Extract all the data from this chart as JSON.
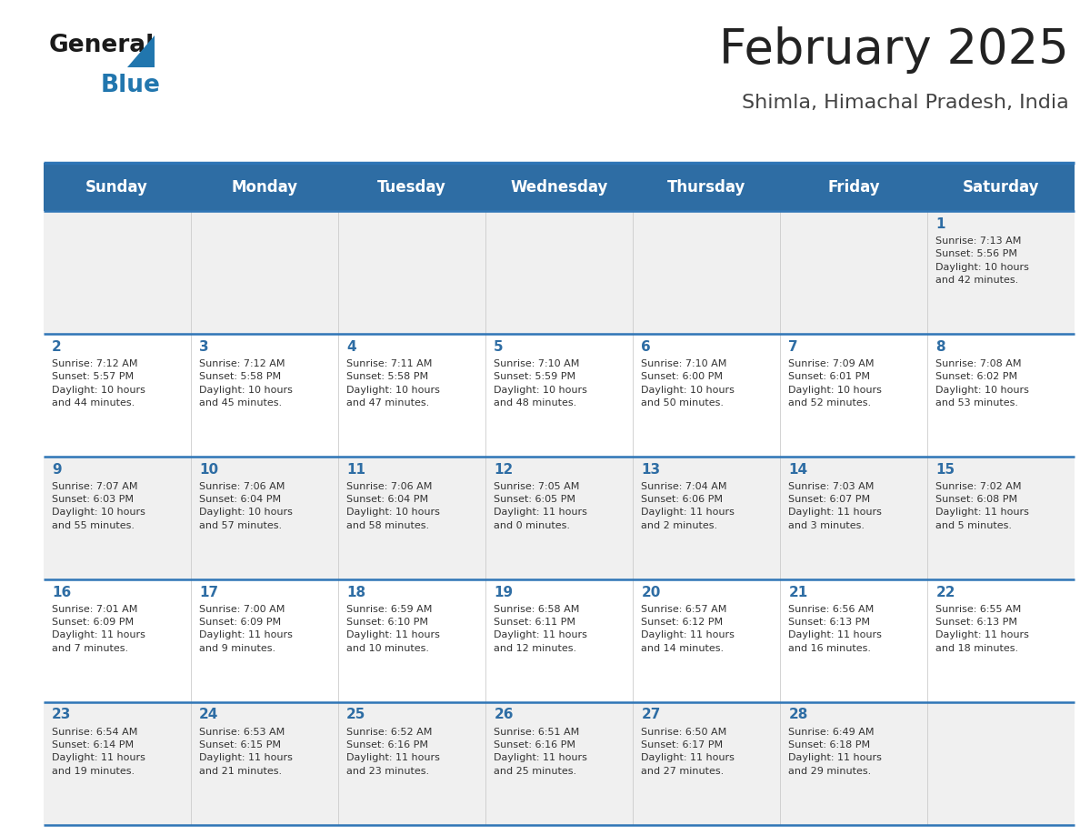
{
  "title": "February 2025",
  "subtitle": "Shimla, Himachal Pradesh, India",
  "header_bg_color": "#2E6DA4",
  "header_text_color": "#FFFFFF",
  "row_bg_even": "#F0F0F0",
  "row_bg_odd": "#FFFFFF",
  "day_headers": [
    "Sunday",
    "Monday",
    "Tuesday",
    "Wednesday",
    "Thursday",
    "Friday",
    "Saturday"
  ],
  "title_color": "#222222",
  "subtitle_color": "#444444",
  "day_num_color": "#2E6DA4",
  "cell_text_color": "#333333",
  "divider_color": "#2E75B6",
  "logo_general_color": "#1a1a1a",
  "logo_blue_color": "#2176AE",
  "calendar_data": [
    [
      null,
      null,
      null,
      null,
      null,
      null,
      {
        "day": 1,
        "sunrise": "7:13 AM",
        "sunset": "5:56 PM",
        "daylight": "10 hours\nand 42 minutes."
      }
    ],
    [
      {
        "day": 2,
        "sunrise": "7:12 AM",
        "sunset": "5:57 PM",
        "daylight": "10 hours\nand 44 minutes."
      },
      {
        "day": 3,
        "sunrise": "7:12 AM",
        "sunset": "5:58 PM",
        "daylight": "10 hours\nand 45 minutes."
      },
      {
        "day": 4,
        "sunrise": "7:11 AM",
        "sunset": "5:58 PM",
        "daylight": "10 hours\nand 47 minutes."
      },
      {
        "day": 5,
        "sunrise": "7:10 AM",
        "sunset": "5:59 PM",
        "daylight": "10 hours\nand 48 minutes."
      },
      {
        "day": 6,
        "sunrise": "7:10 AM",
        "sunset": "6:00 PM",
        "daylight": "10 hours\nand 50 minutes."
      },
      {
        "day": 7,
        "sunrise": "7:09 AM",
        "sunset": "6:01 PM",
        "daylight": "10 hours\nand 52 minutes."
      },
      {
        "day": 8,
        "sunrise": "7:08 AM",
        "sunset": "6:02 PM",
        "daylight": "10 hours\nand 53 minutes."
      }
    ],
    [
      {
        "day": 9,
        "sunrise": "7:07 AM",
        "sunset": "6:03 PM",
        "daylight": "10 hours\nand 55 minutes."
      },
      {
        "day": 10,
        "sunrise": "7:06 AM",
        "sunset": "6:04 PM",
        "daylight": "10 hours\nand 57 minutes."
      },
      {
        "day": 11,
        "sunrise": "7:06 AM",
        "sunset": "6:04 PM",
        "daylight": "10 hours\nand 58 minutes."
      },
      {
        "day": 12,
        "sunrise": "7:05 AM",
        "sunset": "6:05 PM",
        "daylight": "11 hours\nand 0 minutes."
      },
      {
        "day": 13,
        "sunrise": "7:04 AM",
        "sunset": "6:06 PM",
        "daylight": "11 hours\nand 2 minutes."
      },
      {
        "day": 14,
        "sunrise": "7:03 AM",
        "sunset": "6:07 PM",
        "daylight": "11 hours\nand 3 minutes."
      },
      {
        "day": 15,
        "sunrise": "7:02 AM",
        "sunset": "6:08 PM",
        "daylight": "11 hours\nand 5 minutes."
      }
    ],
    [
      {
        "day": 16,
        "sunrise": "7:01 AM",
        "sunset": "6:09 PM",
        "daylight": "11 hours\nand 7 minutes."
      },
      {
        "day": 17,
        "sunrise": "7:00 AM",
        "sunset": "6:09 PM",
        "daylight": "11 hours\nand 9 minutes."
      },
      {
        "day": 18,
        "sunrise": "6:59 AM",
        "sunset": "6:10 PM",
        "daylight": "11 hours\nand 10 minutes."
      },
      {
        "day": 19,
        "sunrise": "6:58 AM",
        "sunset": "6:11 PM",
        "daylight": "11 hours\nand 12 minutes."
      },
      {
        "day": 20,
        "sunrise": "6:57 AM",
        "sunset": "6:12 PM",
        "daylight": "11 hours\nand 14 minutes."
      },
      {
        "day": 21,
        "sunrise": "6:56 AM",
        "sunset": "6:13 PM",
        "daylight": "11 hours\nand 16 minutes."
      },
      {
        "day": 22,
        "sunrise": "6:55 AM",
        "sunset": "6:13 PM",
        "daylight": "11 hours\nand 18 minutes."
      }
    ],
    [
      {
        "day": 23,
        "sunrise": "6:54 AM",
        "sunset": "6:14 PM",
        "daylight": "11 hours\nand 19 minutes."
      },
      {
        "day": 24,
        "sunrise": "6:53 AM",
        "sunset": "6:15 PM",
        "daylight": "11 hours\nand 21 minutes."
      },
      {
        "day": 25,
        "sunrise": "6:52 AM",
        "sunset": "6:16 PM",
        "daylight": "11 hours\nand 23 minutes."
      },
      {
        "day": 26,
        "sunrise": "6:51 AM",
        "sunset": "6:16 PM",
        "daylight": "11 hours\nand 25 minutes."
      },
      {
        "day": 27,
        "sunrise": "6:50 AM",
        "sunset": "6:17 PM",
        "daylight": "11 hours\nand 27 minutes."
      },
      {
        "day": 28,
        "sunrise": "6:49 AM",
        "sunset": "6:18 PM",
        "daylight": "11 hours\nand 29 minutes."
      },
      null
    ]
  ]
}
